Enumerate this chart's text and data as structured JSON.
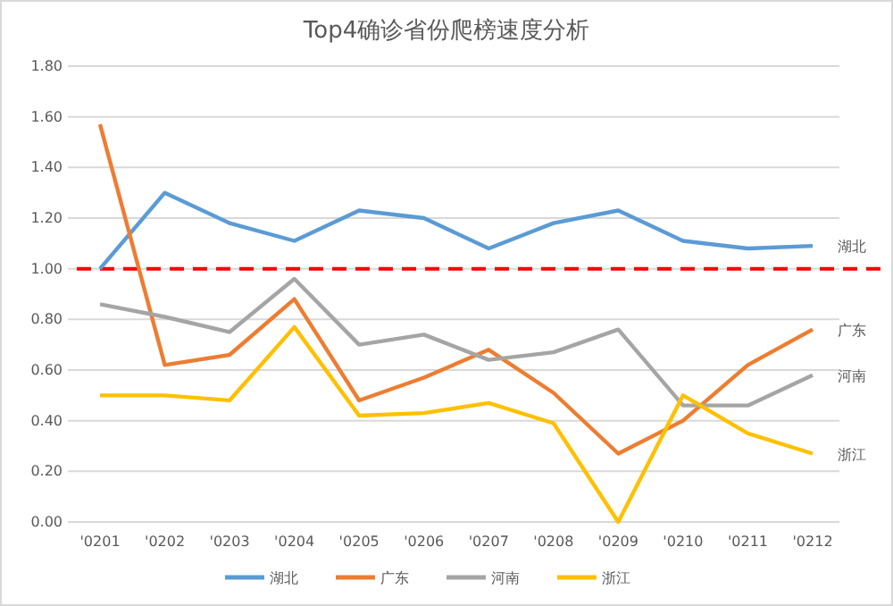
{
  "chart_data": {
    "type": "line",
    "title": "Top4确诊省份爬榜速度分析",
    "categories": [
      "'0201",
      "'0202",
      "'0203",
      "'0204",
      "'0205",
      "'0206",
      "'0207",
      "'0208",
      "'0209",
      "'0210",
      "'0211",
      "'0212"
    ],
    "series": [
      {
        "name": "湖北",
        "color": "#5b9bd5",
        "values": [
          1.0,
          1.3,
          1.18,
          1.11,
          1.23,
          1.2,
          1.08,
          1.18,
          1.23,
          1.11,
          1.08,
          1.09
        ]
      },
      {
        "name": "广东",
        "color": "#ed7d31",
        "values": [
          1.57,
          0.62,
          0.66,
          0.88,
          0.48,
          0.57,
          0.68,
          0.51,
          0.27,
          0.4,
          0.62,
          0.76
        ]
      },
      {
        "name": "河南",
        "color": "#a5a5a5",
        "values": [
          0.86,
          0.81,
          0.75,
          0.96,
          0.7,
          0.74,
          0.64,
          0.67,
          0.76,
          0.46,
          0.46,
          0.58
        ]
      },
      {
        "name": "浙江",
        "color": "#ffc000",
        "values": [
          0.5,
          0.5,
          0.48,
          0.77,
          0.42,
          0.43,
          0.47,
          0.39,
          0.0,
          0.5,
          0.35,
          0.27
        ]
      }
    ],
    "ylim": [
      0,
      1.8
    ],
    "yticks": [
      {
        "value": 0,
        "label": "0.00"
      },
      {
        "value": 0.2,
        "label": "0.20"
      },
      {
        "value": 0.4,
        "label": "0.40"
      },
      {
        "value": 0.6,
        "label": "0.60"
      },
      {
        "value": 0.8,
        "label": "0.80"
      },
      {
        "value": 1,
        "label": "1.00"
      },
      {
        "value": 1.2,
        "label": "1.20"
      },
      {
        "value": 1.4,
        "label": "1.40"
      },
      {
        "value": 1.6,
        "label": "1.60"
      },
      {
        "value": 1.8,
        "label": "1.80"
      }
    ],
    "ref_lines": [
      {
        "axis": "y",
        "value": 1,
        "label": null,
        "color": "#ff0000",
        "line_style": "dashed"
      }
    ],
    "grid": "y",
    "legend": "bottom",
    "marker": "none",
    "line_style": "solid"
  }
}
